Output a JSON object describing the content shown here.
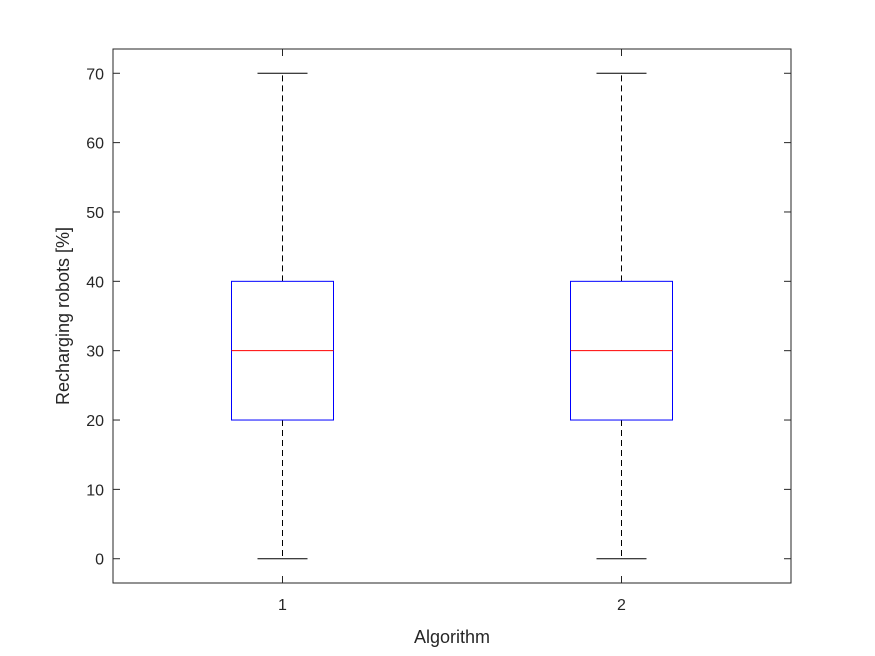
{
  "chart_data": {
    "type": "box",
    "title": "",
    "xlabel": "Algorithm",
    "ylabel": "Recharging robots [%]",
    "categories": [
      "1",
      "2"
    ],
    "ylim": [
      -3.5,
      73.5
    ],
    "yticks": [
      "0",
      "10",
      "20",
      "30",
      "40",
      "50",
      "60",
      "70"
    ],
    "grid": false,
    "boxes": [
      {
        "category": "1",
        "whisker_low": 0,
        "q1": 20,
        "median": 30,
        "q3": 40,
        "whisker_high": 70
      },
      {
        "category": "2",
        "whisker_low": 0,
        "q1": 20,
        "median": 30,
        "q3": 40,
        "whisker_high": 70
      }
    ],
    "colors": {
      "box": "#0000ff",
      "median": "#ff0000",
      "whisker": "#000000",
      "axes": "#262626"
    }
  }
}
